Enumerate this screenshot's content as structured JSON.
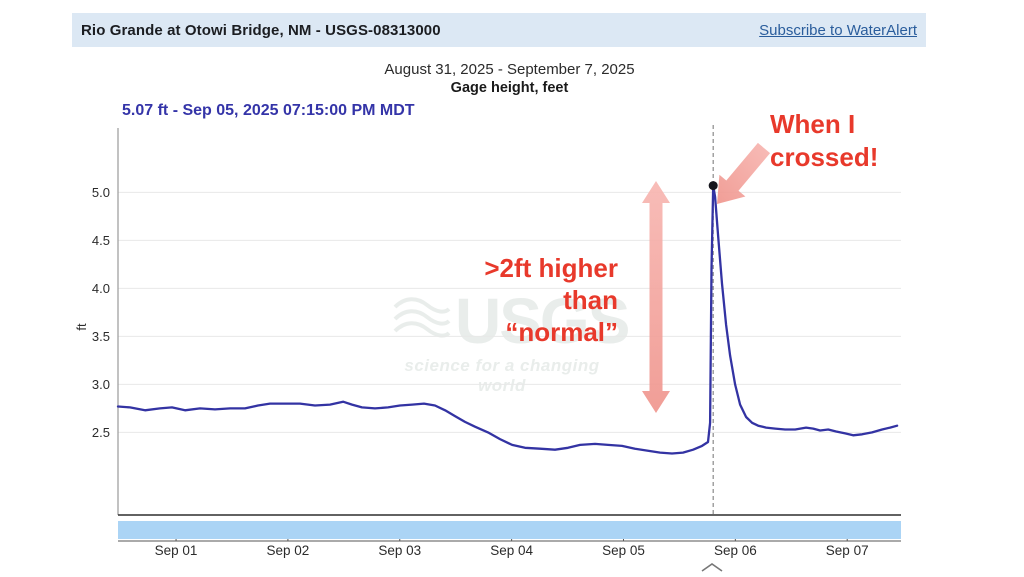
{
  "colors": {
    "header_bg": "#dce8f4",
    "header_text": "#1b1d21",
    "link_blue": "#2a5d9c",
    "reading_indigo": "#3434a8",
    "series_line": "#3333a3",
    "grid_line": "#e8e8e8",
    "axis_gray": "#999999",
    "axis_dark": "#2f2f2f",
    "sub_axis": "#555555",
    "tick_text": "#2b2b2b",
    "annotation_red": "#e8392b",
    "annotation_pink_light": "#f7b5b0",
    "annotation_pink_deep": "#ef938b",
    "range_bar_blue": "#abd4f5",
    "watermark_gray": "#e9edeb",
    "dashed_line": "#8a8a8a",
    "peak_dot": "#16161d",
    "chevron_gray": "#777777"
  },
  "header": {
    "station_title": "Rio Grande at Otowi Bridge, NM - USGS-08313000",
    "subscribe_link": "Subscribe to WaterAlert"
  },
  "chart_header": {
    "date_range": "August 31, 2025 - September 7, 2025",
    "measure_label": "Gage height, feet"
  },
  "current_reading": {
    "label": "5.07 ft - Sep 05, 2025 07:15:00 PM MDT"
  },
  "watermark": {
    "brand": "USGS",
    "tagline": "science for a changing world"
  },
  "annotations": {
    "when_crossed": {
      "line1": "When I",
      "line2": "crossed!"
    },
    "higher": {
      "line1": ">2ft higher",
      "line2": "than",
      "line3": "“normal”"
    }
  },
  "chart_data": {
    "type": "line",
    "title": "Gage height, feet",
    "subtitle": "August 31, 2025 - September 7, 2025",
    "ylabel": "ft",
    "y_ticks": [
      2.5,
      3.0,
      3.5,
      4.0,
      4.5,
      5.0
    ],
    "y_view_range": [
      1.64,
      5.67
    ],
    "x_window_days": 7,
    "x_unit": "days from window start (Aug 31)",
    "x_tick_positions_days": [
      0.519,
      1.519,
      2.519,
      3.519,
      4.519,
      5.519,
      6.519
    ],
    "x_tick_labels": [
      "Sep 01",
      "Sep 02",
      "Sep 03",
      "Sep 04",
      "Sep 05",
      "Sep 06",
      "Sep 07"
    ],
    "peak": {
      "t_days": 5.321,
      "value": 5.07,
      "time_label": "Sep 05, 2025 07:15:00 PM MDT"
    },
    "series": [
      {
        "name": "Gage height, feet",
        "points": [
          [
            0,
            2.77
          ],
          [
            0.107,
            2.76
          ],
          [
            0.241,
            2.73
          ],
          [
            0.375,
            2.75
          ],
          [
            0.483,
            2.76
          ],
          [
            0.599,
            2.73
          ],
          [
            0.733,
            2.75
          ],
          [
            0.867,
            2.74
          ],
          [
            1.001,
            2.75
          ],
          [
            1.135,
            2.75
          ],
          [
            1.252,
            2.78
          ],
          [
            1.359,
            2.8
          ],
          [
            1.493,
            2.8
          ],
          [
            1.627,
            2.8
          ],
          [
            1.761,
            2.78
          ],
          [
            1.895,
            2.79
          ],
          [
            2.012,
            2.82
          ],
          [
            2.092,
            2.79
          ],
          [
            2.181,
            2.76
          ],
          [
            2.298,
            2.75
          ],
          [
            2.414,
            2.76
          ],
          [
            2.521,
            2.78
          ],
          [
            2.629,
            2.79
          ],
          [
            2.736,
            2.8
          ],
          [
            2.834,
            2.78
          ],
          [
            2.924,
            2.73
          ],
          [
            3.013,
            2.67
          ],
          [
            3.102,
            2.61
          ],
          [
            3.192,
            2.56
          ],
          [
            3.308,
            2.5
          ],
          [
            3.415,
            2.43
          ],
          [
            3.523,
            2.37
          ],
          [
            3.639,
            2.34
          ],
          [
            3.773,
            2.33
          ],
          [
            3.907,
            2.32
          ],
          [
            4.023,
            2.34
          ],
          [
            4.131,
            2.37
          ],
          [
            4.265,
            2.38
          ],
          [
            4.381,
            2.37
          ],
          [
            4.506,
            2.36
          ],
          [
            4.622,
            2.33
          ],
          [
            4.738,
            2.31
          ],
          [
            4.846,
            2.29
          ],
          [
            4.953,
            2.28
          ],
          [
            5.051,
            2.29
          ],
          [
            5.141,
            2.32
          ],
          [
            5.221,
            2.36
          ],
          [
            5.275,
            2.4
          ],
          [
            5.293,
            2.6
          ],
          [
            5.306,
            4.2
          ],
          [
            5.321,
            5.07
          ],
          [
            5.338,
            4.95
          ],
          [
            5.365,
            4.55
          ],
          [
            5.4,
            4.05
          ],
          [
            5.436,
            3.62
          ],
          [
            5.472,
            3.3
          ],
          [
            5.517,
            3.0
          ],
          [
            5.562,
            2.79
          ],
          [
            5.615,
            2.66
          ],
          [
            5.669,
            2.6
          ],
          [
            5.723,
            2.57
          ],
          [
            5.794,
            2.55
          ],
          [
            5.875,
            2.54
          ],
          [
            5.964,
            2.53
          ],
          [
            6.054,
            2.53
          ],
          [
            6.152,
            2.55
          ],
          [
            6.215,
            2.54
          ],
          [
            6.277,
            2.52
          ],
          [
            6.349,
            2.53
          ],
          [
            6.42,
            2.51
          ],
          [
            6.501,
            2.49
          ],
          [
            6.572,
            2.47
          ],
          [
            6.653,
            2.48
          ],
          [
            6.742,
            2.5
          ],
          [
            6.831,
            2.53
          ],
          [
            6.903,
            2.55
          ],
          [
            6.965,
            2.57
          ]
        ]
      }
    ]
  }
}
